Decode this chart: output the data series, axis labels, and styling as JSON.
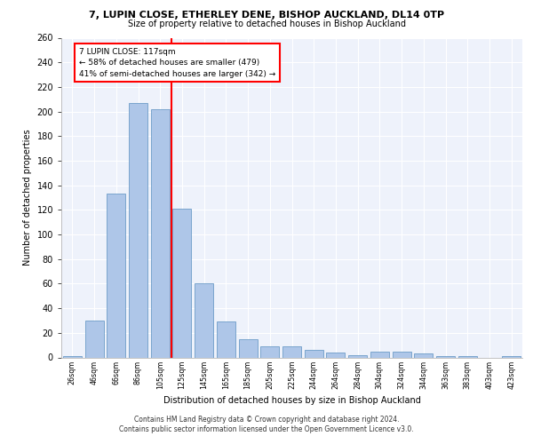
{
  "title1": "7, LUPIN CLOSE, ETHERLEY DENE, BISHOP AUCKLAND, DL14 0TP",
  "title2": "Size of property relative to detached houses in Bishop Auckland",
  "xlabel": "Distribution of detached houses by size in Bishop Auckland",
  "ylabel": "Number of detached properties",
  "categories": [
    "26sqm",
    "46sqm",
    "66sqm",
    "86sqm",
    "105sqm",
    "125sqm",
    "145sqm",
    "165sqm",
    "185sqm",
    "205sqm",
    "225sqm",
    "244sqm",
    "264sqm",
    "284sqm",
    "304sqm",
    "324sqm",
    "344sqm",
    "363sqm",
    "383sqm",
    "403sqm",
    "423sqm"
  ],
  "values": [
    1,
    30,
    133,
    207,
    202,
    121,
    60,
    29,
    15,
    9,
    9,
    6,
    4,
    2,
    5,
    5,
    3,
    1,
    1,
    0,
    1
  ],
  "bar_color": "#aec6e8",
  "bar_edge_color": "#5a8fc0",
  "vline_index": 4.5,
  "vline_color": "red",
  "annotation_text": "7 LUPIN CLOSE: 117sqm\n← 58% of detached houses are smaller (479)\n41% of semi-detached houses are larger (342) →",
  "annotation_box_color": "white",
  "annotation_box_edge": "red",
  "ylim": [
    0,
    260
  ],
  "yticks": [
    0,
    20,
    40,
    60,
    80,
    100,
    120,
    140,
    160,
    180,
    200,
    220,
    240,
    260
  ],
  "background_color": "#eef2fb",
  "grid_color": "#ffffff",
  "footer1": "Contains HM Land Registry data © Crown copyright and database right 2024.",
  "footer2": "Contains public sector information licensed under the Open Government Licence v3.0."
}
